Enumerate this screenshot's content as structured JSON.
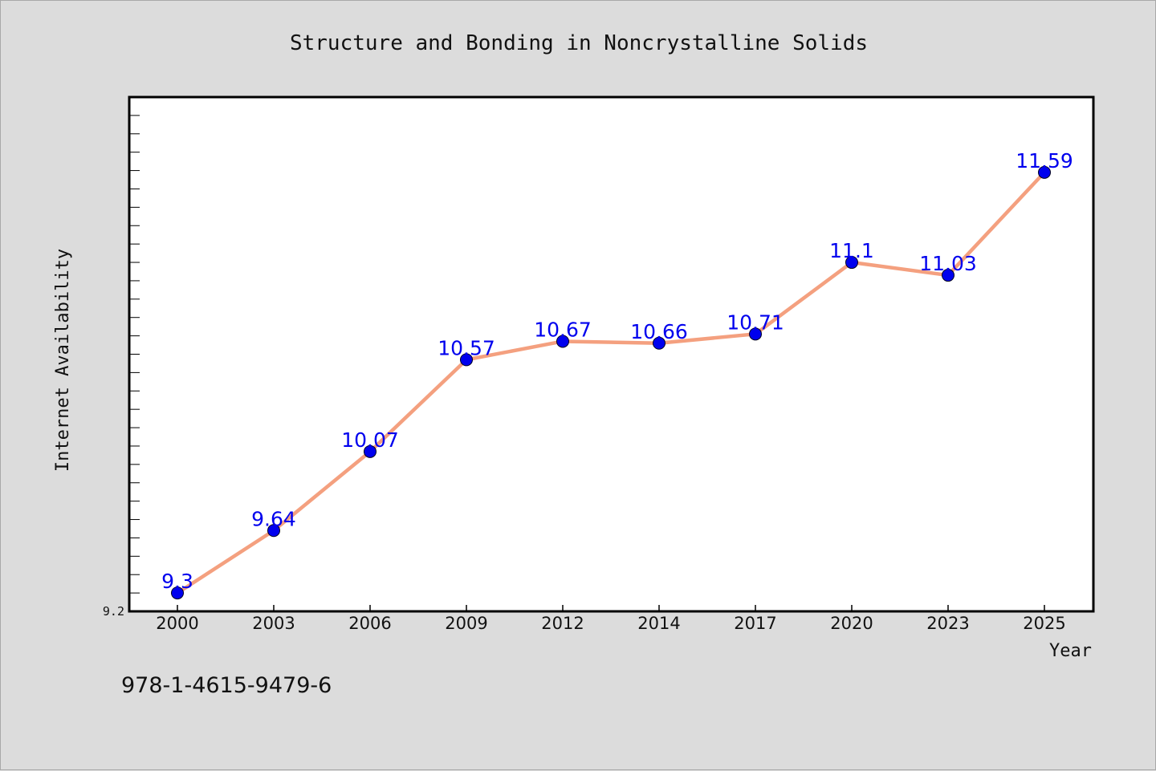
{
  "chart_data": {
    "type": "line",
    "title": "Structure and Bonding in Noncrystalline Solids",
    "xlabel": "Year",
    "ylabel": "Internet Availability",
    "categories": [
      "2000",
      "2003",
      "2006",
      "2009",
      "2012",
      "2014",
      "2017",
      "2020",
      "2023",
      "2025"
    ],
    "series": [
      {
        "values": [
          9.3,
          9.64,
          10.07,
          10.57,
          10.67,
          10.66,
          10.71,
          11.1,
          11.03,
          11.59
        ],
        "data_labels": [
          "9.3",
          "9.64",
          "10.07",
          "10.57",
          "10.67",
          "10.66",
          "10.71",
          "11.1",
          "11.03",
          "11.59"
        ],
        "line_color": "#f4a07f",
        "marker_color": "#0000ee",
        "label_color": "#0000ee"
      }
    ],
    "ylim": [
      9.2,
      12.0
    ],
    "ytick_labels": [
      "9.2"
    ],
    "y_minor_ticks": true,
    "grid": false,
    "legend": "none",
    "plot_background": "#ffffff",
    "figure_background": "#dcdcdc"
  },
  "footer_text": "978-1-4615-9479-6"
}
